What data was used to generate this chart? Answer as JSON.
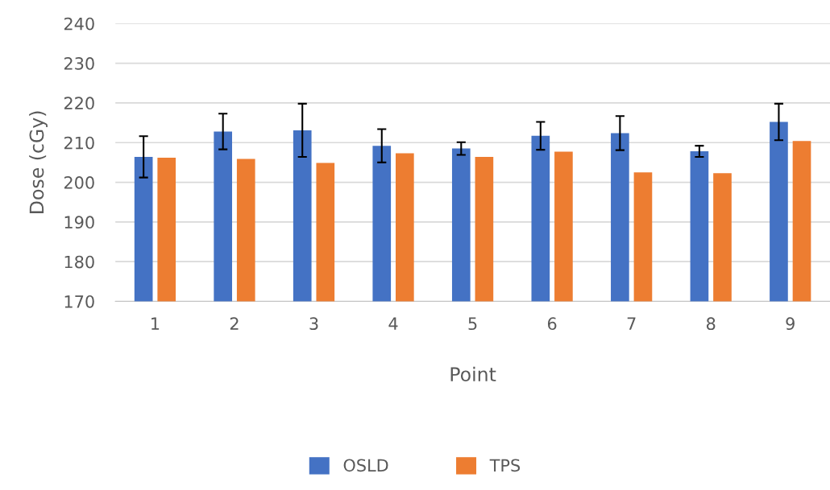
{
  "chart_data": {
    "type": "bar",
    "xlabel": "Point",
    "ylabel": "Dose (cGy)",
    "categories": [
      "1",
      "2",
      "3",
      "4",
      "5",
      "6",
      "7",
      "8",
      "9"
    ],
    "series": [
      {
        "name": "OSLD",
        "color": "#4472c4",
        "values": [
          206.4,
          212.8,
          213.1,
          209.2,
          208.5,
          211.7,
          212.4,
          207.8,
          215.2
        ],
        "errors": [
          5.2,
          4.5,
          6.7,
          4.2,
          1.6,
          3.5,
          4.3,
          1.4,
          4.6
        ]
      },
      {
        "name": "TPS",
        "color": "#ed7d31",
        "values": [
          206.2,
          205.9,
          204.9,
          207.3,
          206.4,
          207.7,
          202.5,
          202.3,
          210.4
        ]
      }
    ],
    "ylim": [
      170,
      240
    ],
    "yticks": [
      170,
      180,
      190,
      200,
      210,
      220,
      230,
      240
    ],
    "grid": "y",
    "legend": "bottom"
  }
}
